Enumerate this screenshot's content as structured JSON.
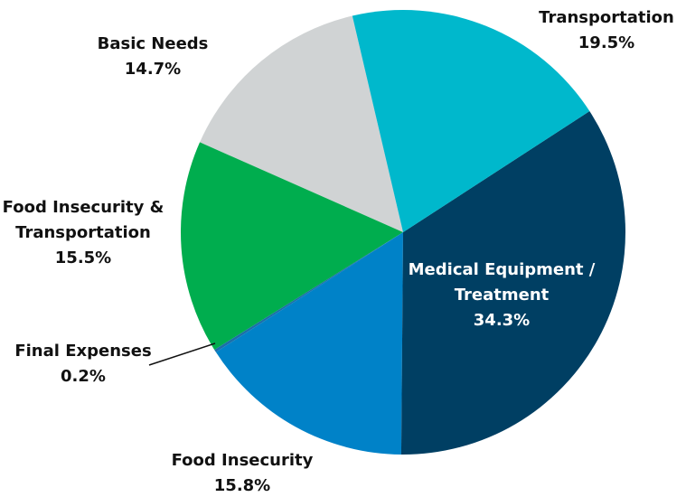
{
  "chart_data": {
    "type": "pie",
    "categories": [
      "Transportation",
      "Medical Equipment / Treatment",
      "Food Insecurity",
      "Final Expenses",
      "Food Insecurity & Transportation",
      "Basic Needs"
    ],
    "values": [
      19.5,
      34.3,
      15.8,
      0.2,
      15.5,
      14.7
    ],
    "value_labels": [
      "19.5%",
      "34.3%",
      "15.8%",
      "0.2%",
      "15.5%",
      "14.7%"
    ],
    "colors": [
      "#00b8cc",
      "#003f63",
      "#0082c8",
      "#1b6fa8",
      "#00ad4e",
      "#d0d3d4"
    ]
  }
}
